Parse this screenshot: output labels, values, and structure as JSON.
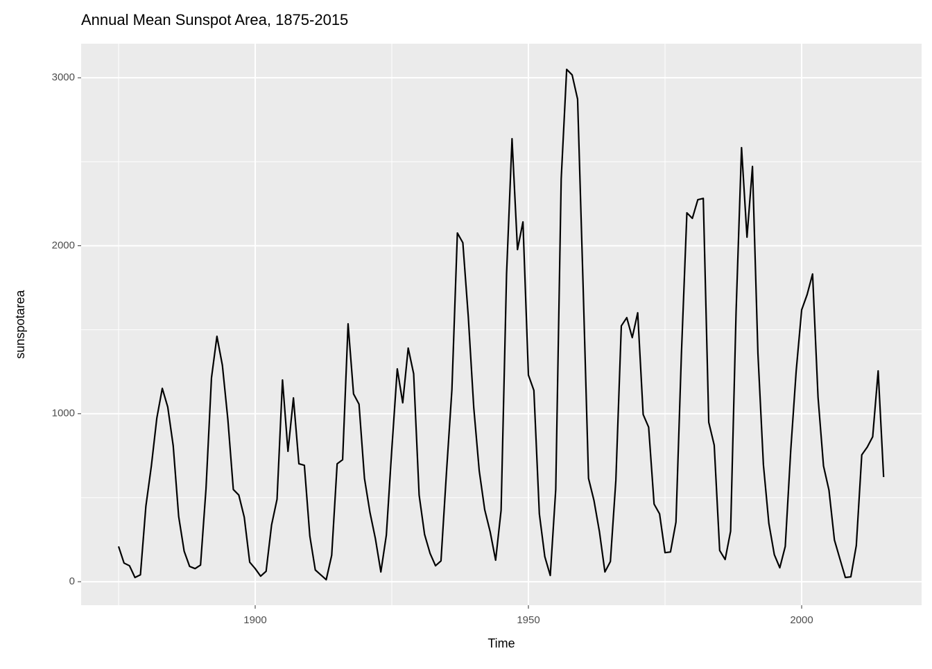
{
  "chart_data": {
    "type": "line",
    "title": "Annual Mean Sunspot Area, 1875-2015",
    "x_label": "Time",
    "y_label": "sunspotarea",
    "x": [
      1875,
      1876,
      1877,
      1878,
      1879,
      1880,
      1881,
      1882,
      1883,
      1884,
      1885,
      1886,
      1887,
      1888,
      1889,
      1890,
      1891,
      1892,
      1893,
      1894,
      1895,
      1896,
      1897,
      1898,
      1899,
      1900,
      1901,
      1902,
      1903,
      1904,
      1905,
      1906,
      1907,
      1908,
      1909,
      1910,
      1911,
      1912,
      1913,
      1914,
      1915,
      1916,
      1917,
      1918,
      1919,
      1920,
      1921,
      1922,
      1923,
      1924,
      1925,
      1926,
      1927,
      1928,
      1929,
      1930,
      1931,
      1932,
      1933,
      1934,
      1935,
      1936,
      1937,
      1938,
      1939,
      1940,
      1941,
      1942,
      1943,
      1944,
      1945,
      1946,
      1947,
      1948,
      1949,
      1950,
      1951,
      1952,
      1953,
      1954,
      1955,
      1956,
      1957,
      1958,
      1959,
      1960,
      1961,
      1962,
      1963,
      1964,
      1965,
      1966,
      1967,
      1968,
      1969,
      1970,
      1971,
      1972,
      1973,
      1974,
      1975,
      1976,
      1977,
      1978,
      1979,
      1980,
      1981,
      1982,
      1983,
      1984,
      1985,
      1986,
      1987,
      1988,
      1989,
      1990,
      1991,
      1992,
      1993,
      1994,
      1995,
      1996,
      1997,
      1998,
      1999,
      2000,
      2001,
      2002,
      2003,
      2004,
      2005,
      2006,
      2007,
      2008,
      2009,
      2010,
      2011,
      2012,
      2013,
      2014,
      2015
    ],
    "values": [
      210,
      111,
      95,
      25,
      41,
      450,
      689,
      974,
      1151,
      1040,
      809,
      388,
      182,
      91,
      78,
      99,
      553,
      1213,
      1461,
      1288,
      966,
      549,
      516,
      384,
      116,
      78,
      33,
      62,
      338,
      491,
      1201,
      776,
      1094,
      702,
      693,
      272,
      70,
      41,
      12,
      157,
      702,
      726,
      1535,
      1118,
      1057,
      615,
      413,
      256,
      58,
      277,
      788,
      1267,
      1065,
      1391,
      1238,
      516,
      281,
      169,
      95,
      124,
      648,
      1143,
      2076,
      2018,
      1576,
      1036,
      660,
      429,
      297,
      128,
      425,
      1832,
      2637,
      1977,
      2142,
      1230,
      1139,
      404,
      149,
      37,
      549,
      2398,
      3050,
      3017,
      2873,
      1770,
      615,
      483,
      297,
      58,
      120,
      603,
      1523,
      1572,
      1453,
      1601,
      995,
      920,
      462,
      404,
      173,
      177,
      355,
      1358,
      2196,
      2163,
      2274,
      2282,
      949,
      813,
      186,
      132,
      301,
      1605,
      2584,
      2051,
      2472,
      1358,
      697,
      347,
      161,
      83,
      210,
      780,
      1255,
      1618,
      1709,
      1832,
      1098,
      689,
      545,
      248,
      136,
      25,
      29,
      215,
      755,
      801,
      863,
      1255,
      623
    ],
    "color": "#000000",
    "xlim": [
      1868.15,
      2021.95
    ],
    "ylim": [
      -140,
      3203
    ],
    "xticks": [
      1900,
      1950,
      2000
    ],
    "yticks": [
      0,
      1000,
      2000,
      3000
    ],
    "grid": true
  }
}
